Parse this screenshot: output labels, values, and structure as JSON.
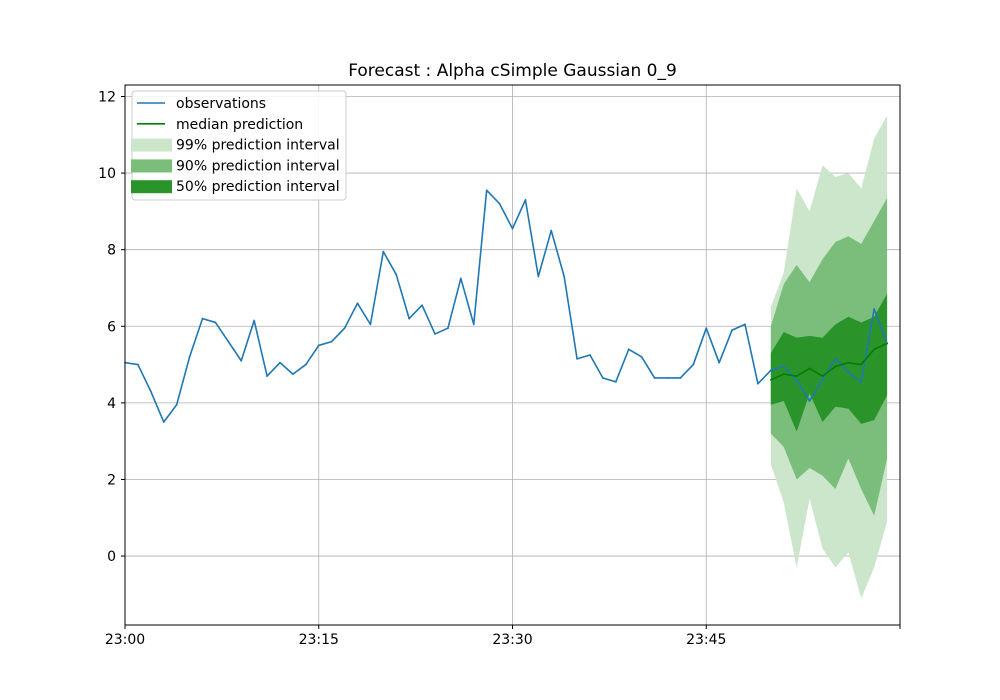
{
  "chart_data": {
    "type": "line",
    "title": "Forecast : Alpha cSimple Gaussian 0_9",
    "xlabel": "",
    "ylabel": "",
    "x_start": "23:00",
    "x_step_minutes": 1,
    "xlim_minutes": [
      0,
      60
    ],
    "ylim": [
      -1.8,
      12.3
    ],
    "x_ticks": [
      {
        "minute": 0,
        "label": "23:00"
      },
      {
        "minute": 15,
        "label": "23:15"
      },
      {
        "minute": 30,
        "label": "23:30"
      },
      {
        "minute": 45,
        "label": "23:45"
      },
      {
        "minute": 60,
        "label": ""
      }
    ],
    "y_ticks": [
      0,
      2,
      4,
      6,
      8,
      10,
      12
    ],
    "grid": true,
    "legend_position": "top-left",
    "colors": {
      "observations": "#1f77b4",
      "median": "#008000",
      "band99": "#cbe6cb",
      "band90": "#7bbd7b",
      "band50": "#2a942a"
    },
    "legend": {
      "observations": "observations",
      "median": "median prediction",
      "band99": "99% prediction interval",
      "band90": "90% prediction interval",
      "band50": "50% prediction interval"
    },
    "observations": {
      "name": "observations",
      "start_minute": 0,
      "values": [
        5.05,
        5.0,
        4.3,
        3.5,
        3.95,
        5.2,
        6.2,
        6.1,
        5.6,
        5.1,
        6.15,
        4.7,
        5.05,
        4.75,
        5.0,
        5.5,
        5.6,
        5.95,
        6.6,
        6.05,
        7.95,
        7.35,
        6.2,
        6.55,
        5.8,
        5.95,
        7.25,
        6.05,
        9.55,
        9.2,
        8.55,
        9.3,
        7.3,
        8.5,
        7.3,
        5.15,
        5.25,
        4.65,
        4.55,
        5.4,
        5.2,
        4.65,
        4.65,
        4.65,
        5.0,
        5.95,
        5.05,
        5.9,
        6.05,
        4.5,
        4.85,
        4.95,
        4.6,
        4.05,
        4.6,
        5.15,
        4.8,
        4.55,
        6.45,
        5.55
      ]
    },
    "forecast": {
      "start_minute": 50,
      "median": [
        4.6,
        4.75,
        4.7,
        4.9,
        4.7,
        4.95,
        5.05,
        5.0,
        5.4,
        5.55
      ],
      "band99": {
        "lower": [
          2.4,
          1.4,
          -0.3,
          1.5,
          0.2,
          -0.3,
          0.1,
          -1.1,
          -0.3,
          0.9
        ],
        "upper": [
          6.5,
          7.4,
          9.6,
          9.0,
          10.2,
          9.9,
          10.0,
          9.6,
          10.9,
          11.5
        ]
      },
      "band90": {
        "lower": [
          3.2,
          2.85,
          2.0,
          2.3,
          2.1,
          1.75,
          2.55,
          1.75,
          1.05,
          2.55
        ],
        "upper": [
          6.0,
          7.1,
          7.6,
          7.15,
          7.75,
          8.2,
          8.35,
          8.15,
          8.75,
          9.35
        ]
      },
      "band50": {
        "lower": [
          3.95,
          4.05,
          3.25,
          4.25,
          3.5,
          3.9,
          3.85,
          3.45,
          3.55,
          4.2
        ],
        "upper": [
          5.3,
          5.85,
          5.7,
          5.75,
          5.7,
          6.05,
          6.25,
          6.1,
          6.25,
          6.85
        ]
      }
    }
  }
}
